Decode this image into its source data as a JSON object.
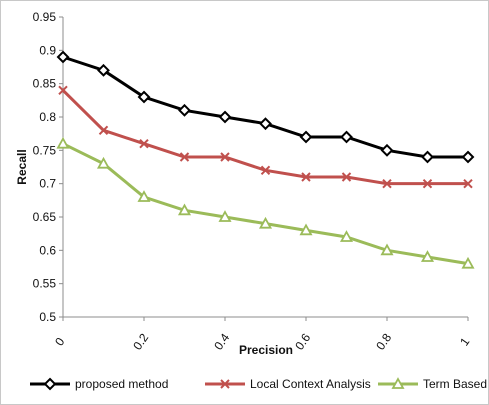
{
  "chart_data": {
    "type": "line",
    "title": "",
    "xlabel": "Precision",
    "ylabel": "Recall",
    "x": [
      0,
      0.1,
      0.2,
      0.3,
      0.4,
      0.5,
      0.6,
      0.7,
      0.8,
      0.9,
      1.0
    ],
    "x_tick_labels": [
      "0",
      "0.2",
      "0.4",
      "0.6",
      "0.8",
      "1"
    ],
    "y_tick_labels": [
      "0.5",
      "0.55",
      "0.6",
      "0.65",
      "0.7",
      "0.75",
      "0.8",
      "0.85",
      "0.9",
      "0.95"
    ],
    "xlim": [
      0,
      1
    ],
    "ylim": [
      0.5,
      0.95
    ],
    "grid": false,
    "legend_position": "bottom",
    "series": [
      {
        "name": "proposed method",
        "color": "#000000",
        "marker": "diamond",
        "values": [
          0.89,
          0.87,
          0.83,
          0.81,
          0.8,
          0.79,
          0.77,
          0.77,
          0.75,
          0.74,
          0.74
        ]
      },
      {
        "name": "Local Context Analysis",
        "color": "#c0504d",
        "marker": "x",
        "values": [
          0.84,
          0.78,
          0.76,
          0.74,
          0.74,
          0.72,
          0.71,
          0.71,
          0.7,
          0.7,
          0.7
        ]
      },
      {
        "name": "Term Based",
        "color": "#9bbb59",
        "marker": "triangle",
        "values": [
          0.76,
          0.73,
          0.68,
          0.66,
          0.65,
          0.64,
          0.63,
          0.62,
          0.6,
          0.59,
          0.58
        ]
      }
    ]
  }
}
